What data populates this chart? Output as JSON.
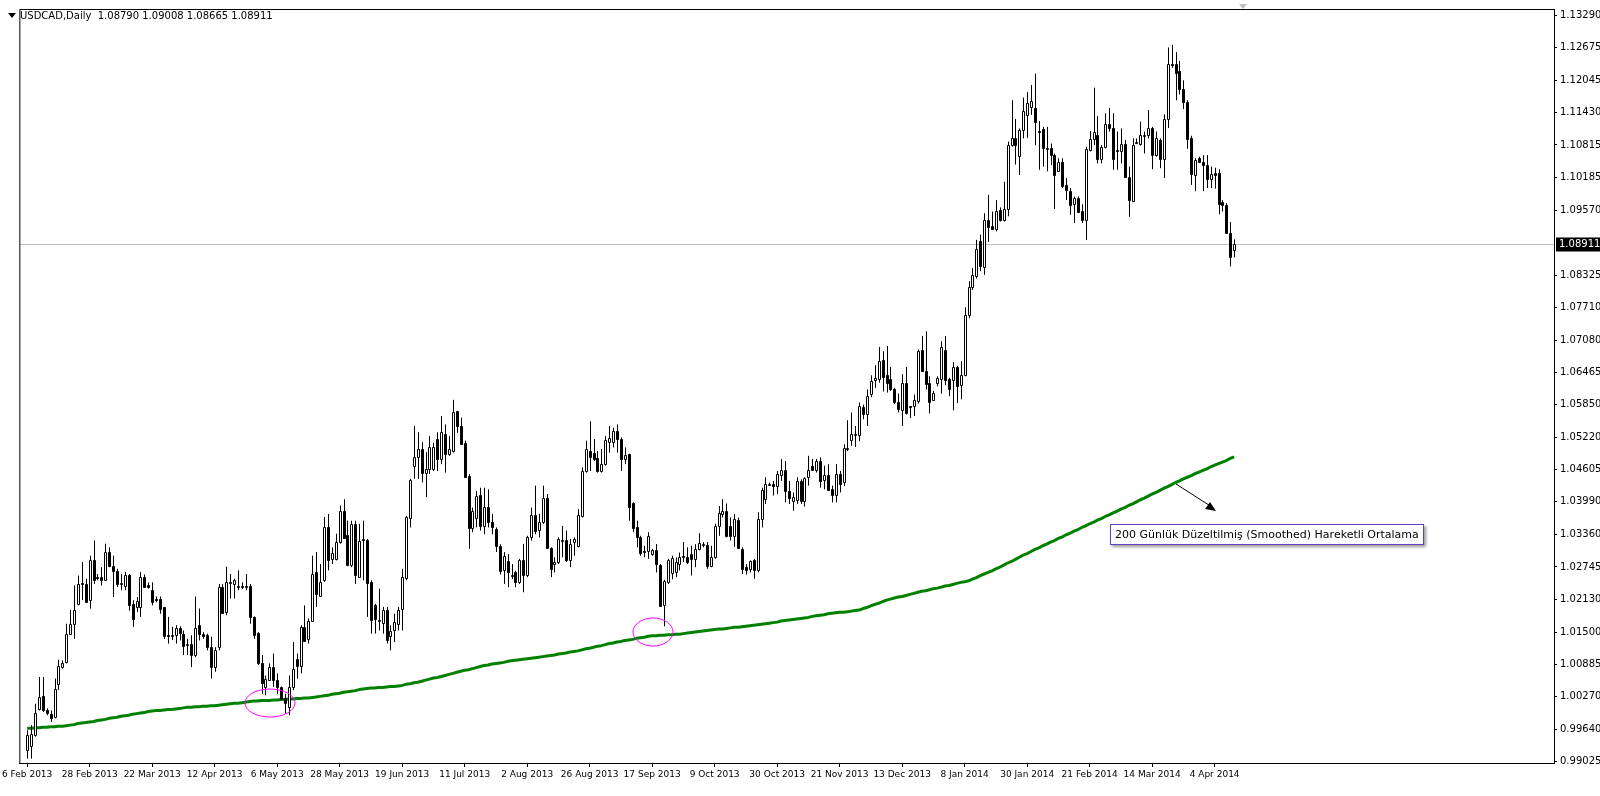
{
  "chart_data": {
    "type": "candlestick",
    "title": "USDCAD,Daily  1.08790 1.09008 1.08665 1.08911",
    "color": "#000000",
    "categories": [
      "6 Feb 2013",
      null,
      null,
      null,
      null,
      null,
      null,
      null,
      null,
      null,
      null,
      null,
      null,
      null,
      null,
      null,
      "28 Feb 2013",
      null,
      null,
      null,
      null,
      null,
      null,
      null,
      null,
      null,
      null,
      null,
      null,
      null,
      null,
      null,
      "22 Mar 2013",
      null,
      null,
      null,
      null,
      null,
      null,
      null,
      null,
      null,
      null,
      null,
      null,
      null,
      null,
      null,
      "12 Apr 2013",
      null,
      null,
      null,
      null,
      null,
      null,
      null,
      null,
      null,
      null,
      null,
      null,
      null,
      null,
      null,
      "6 May 2013",
      null,
      null,
      null,
      null,
      null,
      null,
      null,
      null,
      null,
      null,
      null,
      null,
      null,
      null,
      null,
      "28 May 2013",
      null,
      null,
      null,
      null,
      null,
      null,
      null,
      null,
      null,
      null,
      null,
      null,
      null,
      null,
      null,
      "19 Jun 2013",
      null,
      null,
      null,
      null,
      null,
      null,
      null,
      null,
      null,
      null,
      null,
      null,
      null,
      null,
      null,
      "11 Jul 2013",
      null,
      null,
      null,
      null,
      null,
      null,
      null,
      null,
      null,
      null,
      null,
      null,
      null,
      null,
      null,
      "2 Aug 2013",
      null,
      null,
      null,
      null,
      null,
      null,
      null,
      null,
      null,
      null,
      null,
      null,
      null,
      null,
      null,
      "26 Aug 2013",
      null,
      null,
      null,
      null,
      null,
      null,
      null,
      null,
      null,
      null,
      null,
      null,
      null,
      null,
      null,
      "17 Sep 2013",
      null,
      null,
      null,
      null,
      null,
      null,
      null,
      null,
      null,
      null,
      null,
      null,
      null,
      null,
      null,
      "9 Oct 2013",
      null,
      null,
      null,
      null,
      null,
      null,
      null,
      null,
      null,
      null,
      null,
      null,
      null,
      null,
      null,
      "30 Oct 2013",
      null,
      null,
      null,
      null,
      null,
      null,
      null,
      null,
      null,
      null,
      null,
      null,
      null,
      null,
      null,
      "21 Nov 2013",
      null,
      null,
      null,
      null,
      null,
      null,
      null,
      null,
      null,
      null,
      null,
      null,
      null,
      null,
      null,
      "13 Dec 2013",
      null,
      null,
      null,
      null,
      null,
      null,
      null,
      null,
      null,
      null,
      null,
      null,
      null,
      null,
      null,
      "8 Jan 2014",
      null,
      null,
      null,
      null,
      null,
      null,
      null,
      null,
      null,
      null,
      null,
      null,
      null,
      null,
      null,
      "30 Jan 2014",
      null,
      null,
      null,
      null,
      null,
      null,
      null,
      null,
      null,
      null,
      null,
      null,
      null,
      null,
      null,
      "21 Feb 2014",
      null,
      null,
      null,
      null,
      null,
      null,
      null,
      null,
      null,
      null,
      null,
      null,
      null,
      null,
      null,
      "14 Mar 2014",
      null,
      null,
      null,
      null,
      null,
      null,
      null,
      null,
      null,
      null,
      null,
      null,
      null,
      null,
      null,
      "4 Apr 2014",
      null,
      null,
      null,
      null,
      null
    ],
    "ohlc": [
      [
        0.9924,
        0.9962,
        0.9908,
        0.9953
      ],
      [
        0.9934,
        0.9972,
        0.9908,
        0.9956
      ],
      [
        0.9953,
        1.0013,
        0.995,
        0.9996
      ],
      [
        1.0004,
        1.0064,
        1.0,
        1.0026
      ],
      [
        1.0027,
        1.0064,
        0.9997,
        1.0
      ],
      [
        1.0,
        1.0004,
        0.9991,
        0.9994
      ],
      [
        0.9994,
        1.0,
        0.9978,
        0.9986
      ],
      [
        0.9988,
        1.0061,
        0.9985,
        1.0042
      ],
      [
        1.0051,
        1.0097,
        1.0039,
        1.0085
      ],
      [
        1.0083,
        1.0096,
        1.008,
        1.009
      ],
      [
        1.0093,
        1.0166,
        1.009,
        1.0147
      ],
      [
        1.0147,
        1.0192,
        1.0144,
        1.0166
      ],
      [
        1.0166,
        1.0239,
        1.0137,
        1.0192
      ],
      [
        1.0204,
        1.0258,
        1.0201,
        1.0242
      ],
      [
        1.0241,
        1.0284,
        1.0211,
        1.0243
      ],
      [
        1.0242,
        1.0252,
        1.0207,
        1.0207
      ],
      [
        1.0211,
        1.0296,
        1.0195,
        1.0288
      ],
      [
        1.0288,
        1.0325,
        1.0242,
        1.0249
      ],
      [
        1.0255,
        1.0261,
        1.0249,
        1.0254
      ],
      [
        1.0255,
        1.0274,
        1.0239,
        1.025
      ],
      [
        1.025,
        1.0319,
        1.0249,
        1.0303
      ],
      [
        1.0303,
        1.0312,
        1.0274,
        1.0277
      ],
      [
        1.0277,
        1.0296,
        1.0217,
        1.0268
      ],
      [
        1.0266,
        1.0271,
        1.0236,
        1.0242
      ],
      [
        1.0242,
        1.0261,
        1.023,
        1.0244
      ],
      [
        1.0239,
        1.0265,
        1.023,
        1.026
      ],
      [
        1.026,
        1.0261,
        1.0191,
        1.0203
      ],
      [
        1.0204,
        1.0211,
        1.016,
        1.0176
      ],
      [
        1.0197,
        1.0217,
        1.0188,
        1.0209
      ],
      [
        1.0198,
        1.0265,
        1.0179,
        1.0256
      ],
      [
        1.0256,
        1.026,
        1.0236,
        1.0237
      ],
      [
        1.024,
        1.0245,
        1.0233,
        1.0236
      ],
      [
        1.0231,
        1.0245,
        1.0201,
        1.0209
      ],
      [
        1.0214,
        1.0218,
        1.0207,
        1.0212
      ],
      [
        1.0214,
        1.0218,
        1.0185,
        1.0195
      ],
      [
        1.0197,
        1.0198,
        1.0137,
        1.0142
      ],
      [
        1.0145,
        1.0179,
        1.0128,
        1.0143
      ],
      [
        1.0144,
        1.016,
        1.0135,
        1.0145
      ],
      [
        1.0144,
        1.0163,
        1.0128,
        1.0157
      ],
      [
        1.0157,
        1.0161,
        1.0134,
        1.0147
      ],
      [
        1.0147,
        1.0153,
        1.0106,
        1.0125
      ],
      [
        1.0127,
        1.0137,
        1.0106,
        1.0128
      ],
      [
        1.0127,
        1.0144,
        1.0083,
        1.0106
      ],
      [
        1.0106,
        1.0218,
        1.0102,
        1.0157
      ],
      [
        1.0163,
        1.0195,
        1.0134,
        1.0146
      ],
      [
        1.0146,
        1.015,
        1.0137,
        1.0142
      ],
      [
        1.0144,
        1.0147,
        1.0115,
        1.0121
      ],
      [
        1.0121,
        1.0141,
        1.0061,
        1.0082
      ],
      [
        1.0083,
        1.0121,
        1.0074,
        1.0115
      ],
      [
        1.0123,
        1.0242,
        1.0115,
        1.0237
      ],
      [
        1.0237,
        1.0242,
        1.0185,
        1.0188
      ],
      [
        1.0188,
        1.0275,
        1.0182,
        1.0246
      ],
      [
        1.0245,
        1.0261,
        1.0214,
        1.0246
      ],
      [
        1.0242,
        1.0252,
        1.0214,
        1.0249
      ],
      [
        1.0238,
        1.0268,
        1.023,
        1.0239
      ],
      [
        1.0239,
        1.0245,
        1.0232,
        1.0238
      ],
      [
        1.0238,
        1.0261,
        1.023,
        1.0239
      ],
      [
        1.0238,
        1.0242,
        1.0166,
        1.0179
      ],
      [
        1.0179,
        1.018,
        1.0137,
        1.0144
      ],
      [
        1.0148,
        1.015,
        1.0087,
        1.0091
      ],
      [
        1.0091,
        1.0106,
        1.0032,
        1.0052
      ],
      [
        1.0045,
        1.0067,
        1.0029,
        1.0061
      ],
      [
        1.0059,
        1.009,
        1.0058,
        1.0083
      ],
      [
        1.0083,
        1.0109,
        1.0045,
        1.0058
      ],
      [
        1.0058,
        1.0071,
        1.0032,
        1.0045
      ],
      [
        1.0045,
        1.0046,
        1.002,
        1.0023
      ],
      [
        1.0023,
        1.0032,
        0.9994,
        1.0013
      ],
      [
        1.0007,
        1.0067,
        0.9991,
        1.0045
      ],
      [
        1.0045,
        1.0131,
        1.0039,
        1.008
      ],
      [
        1.0099,
        1.0109,
        1.0061,
        1.0085
      ],
      [
        1.0085,
        1.0163,
        1.0071,
        1.016
      ],
      [
        1.016,
        1.0201,
        1.0132,
        1.0134
      ],
      [
        1.0137,
        1.0176,
        1.0128,
        1.0172
      ],
      [
        1.0172,
        1.0296,
        1.017,
        1.0261
      ],
      [
        1.0265,
        1.0303,
        1.0198,
        1.0223
      ],
      [
        1.022,
        1.028,
        1.0217,
        1.0246
      ],
      [
        1.0249,
        1.037,
        1.0246,
        1.035
      ],
      [
        1.035,
        1.0376,
        1.0268,
        1.0287
      ],
      [
        1.029,
        1.0312,
        1.028,
        1.0301
      ],
      [
        1.029,
        1.0338,
        1.0287,
        1.0322
      ],
      [
        1.0322,
        1.0392,
        1.0319,
        1.0382
      ],
      [
        1.0382,
        1.0404,
        1.0328,
        1.0331
      ],
      [
        1.0335,
        1.0363,
        1.0276,
        1.0277
      ],
      [
        1.0277,
        1.0363,
        1.0274,
        1.0356
      ],
      [
        1.0356,
        1.0363,
        1.0242,
        1.0258
      ],
      [
        1.0256,
        1.0357,
        1.0255,
        1.0325
      ],
      [
        1.0326,
        1.0363,
        1.0249,
        1.0327
      ],
      [
        1.0326,
        1.0328,
        1.0179,
        1.0244
      ],
      [
        1.0246,
        1.0249,
        1.0147,
        1.0174
      ],
      [
        1.0201,
        1.0204,
        1.0147,
        1.0174
      ],
      [
        1.0172,
        1.0233,
        1.0153,
        1.0173
      ],
      [
        1.0169,
        1.0198,
        1.0147,
        1.0193
      ],
      [
        1.0193,
        1.0198,
        1.0128,
        1.0136
      ],
      [
        1.0142,
        1.0163,
        1.0115,
        1.0152
      ],
      [
        1.0153,
        1.0185,
        1.0131,
        1.0169
      ],
      [
        1.0166,
        1.0198,
        1.0153,
        1.0192
      ],
      [
        1.0193,
        1.0271,
        1.0153,
        1.0255
      ],
      [
        1.0254,
        1.0372,
        1.0249,
        1.037
      ],
      [
        1.0368,
        1.0443,
        1.035,
        1.0441
      ],
      [
        1.0468,
        1.0544,
        1.0443,
        1.0485
      ],
      [
        1.0485,
        1.0532,
        1.0443,
        1.05
      ],
      [
        1.05,
        1.0513,
        1.0436,
        1.0455
      ],
      [
        1.0455,
        1.0494,
        1.0408,
        1.0462
      ],
      [
        1.0462,
        1.0525,
        1.0452,
        1.0504
      ],
      [
        1.0462,
        1.0512,
        1.0458,
        1.0504
      ],
      [
        1.0519,
        1.0532,
        1.0458,
        1.0481
      ],
      [
        1.0481,
        1.0563,
        1.0471,
        1.0532
      ],
      [
        1.0528,
        1.0547,
        1.0455,
        1.049
      ],
      [
        1.049,
        1.0525,
        1.0487,
        1.05
      ],
      [
        1.0496,
        1.0594,
        1.0493,
        1.057
      ],
      [
        1.0572,
        1.0573,
        1.0531,
        1.0544
      ],
      [
        1.0544,
        1.056,
        1.0509,
        1.051
      ],
      [
        1.0512,
        1.0516,
        1.0446,
        1.0447
      ],
      [
        1.0449,
        1.0452,
        1.0309,
        1.0349
      ],
      [
        1.0349,
        1.0388,
        1.0341,
        1.0381
      ],
      [
        1.0368,
        1.042,
        1.035,
        1.041
      ],
      [
        1.0412,
        1.0426,
        1.0344,
        1.0353
      ],
      [
        1.0353,
        1.0426,
        1.0337,
        1.0389
      ],
      [
        1.0389,
        1.0423,
        1.035,
        1.036
      ],
      [
        1.036,
        1.0376,
        1.0337,
        1.035
      ],
      [
        1.0348,
        1.035,
        1.0303,
        1.0315
      ],
      [
        1.0315,
        1.0318,
        1.026,
        1.0268
      ],
      [
        1.0269,
        1.0303,
        1.0242,
        1.0296
      ],
      [
        1.0285,
        1.0299,
        1.0236,
        1.0264
      ],
      [
        1.0259,
        1.028,
        1.0251,
        1.026
      ],
      [
        1.0264,
        1.0267,
        1.0236,
        1.0245
      ],
      [
        1.0245,
        1.029,
        1.0242,
        1.0287
      ],
      [
        1.0287,
        1.0318,
        1.0226,
        1.0258
      ],
      [
        1.0258,
        1.0334,
        1.0255,
        1.0331
      ],
      [
        1.0331,
        1.0388,
        1.0325,
        1.0374
      ],
      [
        1.0374,
        1.043,
        1.0337,
        1.0344
      ],
      [
        1.0344,
        1.0376,
        1.0331,
        1.036
      ],
      [
        1.036,
        1.043,
        1.0357,
        1.0406
      ],
      [
        1.0407,
        1.0414,
        1.0309,
        1.0311
      ],
      [
        1.0311,
        1.0312,
        1.0255,
        1.0271
      ],
      [
        1.028,
        1.0293,
        1.0264,
        1.0284
      ],
      [
        1.0284,
        1.0331,
        1.028,
        1.0328
      ],
      [
        1.0325,
        1.0353,
        1.0293,
        1.0326
      ],
      [
        1.0326,
        1.0344,
        1.0284,
        1.0287
      ],
      [
        1.0287,
        1.0328,
        1.0274,
        1.0318
      ],
      [
        1.0323,
        1.0331,
        1.0296,
        1.0328
      ],
      [
        1.0315,
        1.0385,
        1.0312,
        1.0374
      ],
      [
        1.0372,
        1.0465,
        1.0369,
        1.0458
      ],
      [
        1.0458,
        1.0516,
        1.0455,
        1.05
      ],
      [
        1.0496,
        1.0553,
        1.0458,
        1.0485
      ],
      [
        1.0493,
        1.0519,
        1.0477,
        1.0482
      ],
      [
        1.0482,
        1.0496,
        1.0455,
        1.0458
      ],
      [
        1.0458,
        1.05,
        1.0455,
        1.0471
      ],
      [
        1.0471,
        1.0525,
        1.0468,
        1.0517
      ],
      [
        1.0515,
        1.0544,
        1.0493,
        1.0522
      ],
      [
        1.0514,
        1.0541,
        1.0503,
        1.0535
      ],
      [
        1.0535,
        1.0547,
        1.0493,
        1.0519
      ],
      [
        1.0519,
        1.0522,
        1.0458,
        1.0481
      ],
      [
        1.0481,
        1.0503,
        1.0471,
        1.0489
      ],
      [
        1.049,
        1.0491,
        1.0363,
        1.0388
      ],
      [
        1.0397,
        1.0398,
        1.0341,
        1.035
      ],
      [
        1.0351,
        1.0363,
        1.0312,
        1.0331
      ],
      [
        1.0331,
        1.0334,
        1.0296,
        1.03
      ],
      [
        1.0305,
        1.0315,
        1.0293,
        1.0303
      ],
      [
        1.0306,
        1.0341,
        1.029,
        1.0334
      ],
      [
        1.0299,
        1.0309,
        1.0296,
        1.0306
      ],
      [
        1.0306,
        1.0318,
        1.0264,
        1.0279
      ],
      [
        1.0279,
        1.028,
        1.0199,
        1.0201
      ],
      [
        1.0201,
        1.025,
        1.0161,
        1.0247
      ],
      [
        1.0245,
        1.029,
        1.0242,
        1.0287
      ],
      [
        1.0264,
        1.0296,
        1.0251,
        1.0292
      ],
      [
        1.0264,
        1.0293,
        1.0255,
        1.0284
      ],
      [
        1.0281,
        1.0302,
        1.0268,
        1.0294
      ],
      [
        1.0294,
        1.0322,
        1.0284,
        1.0295
      ],
      [
        1.0293,
        1.0312,
        1.028,
        1.0284
      ],
      [
        1.03,
        1.0315,
        1.0258,
        1.029
      ],
      [
        1.029,
        1.0318,
        1.0274,
        1.0309
      ],
      [
        1.0309,
        1.0339,
        1.0306,
        1.032
      ],
      [
        1.0318,
        1.0322,
        1.0312,
        1.0319
      ],
      [
        1.0317,
        1.0322,
        1.0271,
        1.0277
      ],
      [
        1.0277,
        1.0315,
        1.0274,
        1.0294
      ],
      [
        1.0293,
        1.0357,
        1.029,
        1.0353
      ],
      [
        1.0353,
        1.0391,
        1.0334,
        1.0377
      ],
      [
        1.0377,
        1.0404,
        1.0369,
        1.0382
      ],
      [
        1.0382,
        1.0396,
        1.0331,
        1.0334
      ],
      [
        1.0353,
        1.0369,
        1.0325,
        1.0334
      ],
      [
        1.0334,
        1.0376,
        1.0313,
        1.0366
      ],
      [
        1.0364,
        1.0369,
        1.0309,
        1.0311
      ],
      [
        1.0309,
        1.0312,
        1.0261,
        1.0271
      ],
      [
        1.0275,
        1.028,
        1.026,
        1.0269
      ],
      [
        1.0269,
        1.0287,
        1.0264,
        1.0285
      ],
      [
        1.0287,
        1.029,
        1.0252,
        1.0268
      ],
      [
        1.0268,
        1.0379,
        1.0264,
        1.0366
      ],
      [
        1.0366,
        1.0426,
        1.035,
        1.0422
      ],
      [
        1.0406,
        1.0446,
        1.0395,
        1.0434
      ],
      [
        1.0433,
        1.0436,
        1.043,
        1.0434
      ],
      [
        1.0433,
        1.0439,
        1.0411,
        1.043
      ],
      [
        1.043,
        1.0458,
        1.0414,
        1.0452
      ],
      [
        1.0451,
        1.0481,
        1.0439,
        1.046
      ],
      [
        1.046,
        1.0477,
        1.0398,
        1.0419
      ],
      [
        1.042,
        1.0439,
        1.0395,
        1.0406
      ],
      [
        1.0402,
        1.0417,
        1.0382,
        1.0409
      ],
      [
        1.0401,
        1.0446,
        1.0395,
        1.0438
      ],
      [
        1.0439,
        1.0442,
        1.0395,
        1.0401
      ],
      [
        1.04,
        1.0446,
        1.039,
        1.0444
      ],
      [
        1.0447,
        1.0487,
        1.043,
        1.046
      ],
      [
        1.0468,
        1.0481,
        1.0458,
        1.046
      ],
      [
        1.046,
        1.0481,
        1.0455,
        1.0477
      ],
      [
        1.0478,
        1.0484,
        1.0426,
        1.044
      ],
      [
        1.044,
        1.0468,
        1.0423,
        1.045
      ],
      [
        1.045,
        1.0471,
        1.042,
        1.0421
      ],
      [
        1.0423,
        1.043,
        1.0398,
        1.0412
      ],
      [
        1.0412,
        1.0471,
        1.0398,
        1.0453
      ],
      [
        1.0453,
        1.0458,
        1.0417,
        1.0434
      ],
      [
        1.0436,
        1.0509,
        1.0429,
        1.0501
      ],
      [
        1.0499,
        1.0555,
        1.0496,
        1.0501
      ],
      [
        1.0517,
        1.057,
        1.0506,
        1.0528
      ],
      [
        1.0527,
        1.0544,
        1.0504,
        1.0528
      ],
      [
        1.0527,
        1.0589,
        1.0515,
        1.0582
      ],
      [
        1.058,
        1.0585,
        1.0557,
        1.0566
      ],
      [
        1.0566,
        1.0614,
        1.0544,
        1.0601
      ],
      [
        1.0606,
        1.0641,
        1.0599,
        1.063
      ],
      [
        1.0631,
        1.066,
        1.0617,
        1.0635
      ],
      [
        1.0635,
        1.0695,
        1.0627,
        1.0669
      ],
      [
        1.0671,
        1.0687,
        1.061,
        1.0638
      ],
      [
        1.0641,
        1.0697,
        1.0608,
        1.0625
      ],
      [
        1.0633,
        1.0657,
        1.0611,
        1.0614
      ],
      [
        1.0614,
        1.0617,
        1.0586,
        1.0589
      ],
      [
        1.0589,
        1.0606,
        1.057,
        1.0576
      ],
      [
        1.0576,
        1.0643,
        1.0544,
        1.0627
      ],
      [
        1.0627,
        1.0657,
        1.0566,
        1.057
      ],
      [
        1.0582,
        1.0582,
        1.0559,
        1.0581
      ],
      [
        1.0582,
        1.0604,
        1.0563,
        1.0593
      ],
      [
        1.0591,
        1.069,
        1.0587,
        1.0687
      ],
      [
        1.069,
        1.0716,
        1.0648,
        1.0649
      ],
      [
        1.065,
        1.0725,
        1.0614,
        1.0625
      ],
      [
        1.0627,
        1.0639,
        1.0568,
        1.0591
      ],
      [
        1.0595,
        1.0611,
        1.0593,
        1.0608
      ],
      [
        1.0627,
        1.0639,
        1.062,
        1.0636
      ],
      [
        1.0633,
        1.0706,
        1.0606,
        1.0695
      ],
      [
        1.069,
        1.0716,
        1.0622,
        1.0633
      ],
      [
        1.0633,
        1.0636,
        1.0601,
        1.0614
      ],
      [
        1.0633,
        1.0666,
        1.0574,
        1.0657
      ],
      [
        1.0657,
        1.0659,
        1.0588,
        1.062
      ],
      [
        1.0622,
        1.0668,
        1.0595,
        1.0642
      ],
      [
        1.0642,
        1.0771,
        1.0639,
        1.0756
      ],
      [
        1.0756,
        1.0821,
        1.075,
        1.0809
      ],
      [
        1.0809,
        1.0846,
        1.0804,
        1.0832
      ],
      [
        1.0832,
        1.09,
        1.0826,
        1.0883
      ],
      [
        1.0898,
        1.091,
        1.084,
        1.0851
      ],
      [
        1.0849,
        1.0951,
        1.0833,
        1.0938
      ],
      [
        1.0938,
        1.0986,
        1.0896,
        1.0925
      ],
      [
        1.0927,
        1.0954,
        1.0919,
        1.0921
      ],
      [
        1.0921,
        1.0976,
        1.0916,
        1.0955
      ],
      [
        1.0957,
        1.0962,
        1.0935,
        1.0938
      ],
      [
        1.0938,
        1.1011,
        1.0935,
        1.0959
      ],
      [
        1.0959,
        1.1088,
        1.0945,
        1.1081
      ],
      [
        1.108,
        1.1167,
        1.1078,
        1.1094
      ],
      [
        1.1094,
        1.1131,
        1.1044,
        1.1081
      ],
      [
        1.1061,
        1.1113,
        1.1024,
        1.111
      ],
      [
        1.111,
        1.1172,
        1.1094,
        1.1146
      ],
      [
        1.1139,
        1.1183,
        1.1095,
        1.1161
      ],
      [
        1.1153,
        1.1196,
        1.1139,
        1.1165
      ],
      [
        1.1153,
        1.1218,
        1.1081,
        1.1126
      ],
      [
        1.1109,
        1.1127,
        1.1034,
        1.1108
      ],
      [
        1.1112,
        1.1116,
        1.104,
        1.1075
      ],
      [
        1.1075,
        1.1116,
        1.1031,
        1.1076
      ],
      [
        1.1075,
        1.1084,
        1.1043,
        1.1062
      ],
      [
        1.1063,
        1.1065,
        1.0959,
        1.1024
      ],
      [
        1.1032,
        1.1056,
        1.103,
        1.1049
      ],
      [
        1.1049,
        1.1056,
        1.0999,
        1.1004
      ],
      [
        1.1004,
        1.1018,
        1.0976,
        1.0994
      ],
      [
        1.0994,
        1.0999,
        1.0948,
        1.0968
      ],
      [
        1.0968,
        1.0983,
        1.0932,
        1.098
      ],
      [
        1.098,
        1.0983,
        1.0951,
        1.0954
      ],
      [
        1.0955,
        1.0968,
        1.0932,
        1.0938
      ],
      [
        1.0938,
        1.1078,
        1.09,
        1.1074
      ],
      [
        1.1072,
        1.1108,
        1.1069,
        1.1093
      ],
      [
        1.1093,
        1.1191,
        1.1081,
        1.1106
      ],
      [
        1.11,
        1.1137,
        1.1046,
        1.1054
      ],
      [
        1.1054,
        1.1081,
        1.1046,
        1.1077
      ],
      [
        1.1077,
        1.1142,
        1.1075,
        1.1121
      ],
      [
        1.1121,
        1.1152,
        1.1107,
        1.1113
      ],
      [
        1.1113,
        1.1142,
        1.1034,
        1.1054
      ],
      [
        1.1072,
        1.1107,
        1.1034,
        1.1071
      ],
      [
        1.107,
        1.1113,
        1.1046,
        1.1084
      ],
      [
        1.1084,
        1.1091,
        1.1018,
        1.102
      ],
      [
        1.102,
        1.104,
        1.0944,
        1.0976
      ],
      [
        1.0974,
        1.1094,
        1.0972,
        1.1081
      ],
      [
        1.1086,
        1.1094,
        1.1083,
        1.1087
      ],
      [
        1.1083,
        1.1126,
        1.108,
        1.11
      ],
      [
        1.11,
        1.1107,
        1.1065,
        1.1101
      ],
      [
        1.1099,
        1.1148,
        1.1094,
        1.1113
      ],
      [
        1.1113,
        1.1116,
        1.1035,
        1.1062
      ],
      [
        1.1063,
        1.1107,
        1.1059,
        1.1095
      ],
      [
        1.1091,
        1.1094,
        1.1037,
        1.1054
      ],
      [
        1.1054,
        1.114,
        1.1018,
        1.1131
      ],
      [
        1.1131,
        1.1268,
        1.1114,
        1.1236
      ],
      [
        1.1236,
        1.1273,
        1.1229,
        1.1235
      ],
      [
        1.1236,
        1.1259,
        1.1167,
        1.1218
      ],
      [
        1.1223,
        1.1242,
        1.1178,
        1.1188
      ],
      [
        1.1188,
        1.1205,
        1.115,
        1.1164
      ],
      [
        1.1164,
        1.1167,
        1.1074,
        1.1094
      ],
      [
        1.1094,
        1.1099,
        1.1005,
        1.1025
      ],
      [
        1.1025,
        1.1056,
        1.0993,
        1.1053
      ],
      [
        1.1057,
        1.1059,
        1.1048,
        1.1049
      ],
      [
        1.1049,
        1.1062,
        1.0993,
        1.1043
      ],
      [
        1.1043,
        1.1062,
        1.0999,
        1.1016
      ],
      [
        1.1016,
        1.104,
        1.0999,
        1.1025
      ],
      [
        1.1027,
        1.1038,
        1.0998,
        1.1023
      ],
      [
        1.1027,
        1.1035,
        1.0949,
        1.0968
      ],
      [
        1.0972,
        1.0976,
        1.0954,
        1.0967
      ],
      [
        1.0967,
        1.097,
        1.0912,
        1.0913
      ],
      [
        1.0913,
        1.0934,
        1.0849,
        1.0867
      ],
      [
        1.0879,
        1.09008,
        1.08665,
        1.08911
      ]
    ],
    "series": [
      {
        "type": "line",
        "color": "#008000",
        "values": [
          0.9966,
          0.9966,
          0.9967,
          0.9967,
          0.9968,
          0.9968,
          0.9969,
          0.9969,
          0.997,
          0.997,
          0.9971,
          0.9972,
          0.9973,
          0.9975,
          0.9976,
          0.9977,
          0.9978,
          0.9979,
          0.9981,
          0.9982,
          0.9983,
          0.9985,
          0.9986,
          0.9987,
          0.9989,
          0.999,
          0.9991,
          0.9993,
          0.9994,
          0.9995,
          0.9996,
          0.9998,
          0.9999,
          1.0,
          1.0,
          1.0001,
          1.0002,
          1.0002,
          1.0003,
          1.0004,
          1.0005,
          1.0006,
          1.0006,
          1.0007,
          1.0007,
          1.0008,
          1.0008,
          1.0009,
          1.0009,
          1.001,
          1.0011,
          1.0012,
          1.0013,
          1.0014,
          1.0014,
          1.0015,
          1.0016,
          1.0017,
          1.0018,
          1.0018,
          1.0019,
          1.0019,
          1.0019,
          1.002,
          1.002,
          1.0021,
          1.0021,
          1.0022,
          1.0022,
          1.0023,
          1.0023,
          1.0024,
          1.0024,
          1.0025,
          1.0026,
          1.0027,
          1.0028,
          1.0029,
          1.0031,
          1.0032,
          1.0033,
          1.0035,
          1.0036,
          1.0037,
          1.0038,
          1.004,
          1.0041,
          1.0042,
          1.0043,
          1.0043,
          1.0044,
          1.0044,
          1.0045,
          1.0046,
          1.0046,
          1.0047,
          1.0048,
          1.005,
          1.0051,
          1.0053,
          1.0054,
          1.0056,
          1.0058,
          1.006,
          1.0062,
          1.0063,
          1.0065,
          1.0067,
          1.0069,
          1.0071,
          1.0073,
          1.0075,
          1.0077,
          1.0078,
          1.008,
          1.0082,
          1.0084,
          1.0086,
          1.0087,
          1.0089,
          1.009,
          1.0091,
          1.0092,
          1.0094,
          1.0095,
          1.0096,
          1.0097,
          1.0098,
          1.0099,
          1.01,
          1.0101,
          1.0102,
          1.0103,
          1.0104,
          1.0105,
          1.0106,
          1.0108,
          1.0109,
          1.011,
          1.0112,
          1.0113,
          1.0114,
          1.0116,
          1.0118,
          1.0119,
          1.0121,
          1.0123,
          1.0124,
          1.0126,
          1.0128,
          1.0129,
          1.0131,
          1.0132,
          1.0134,
          1.0135,
          1.0136,
          1.0138,
          1.0139,
          1.014,
          1.0142,
          1.0143,
          1.0143,
          1.0144,
          1.0144,
          1.0145,
          1.0145,
          1.0146,
          1.0146,
          1.0147,
          1.0148,
          1.0149,
          1.015,
          1.0151,
          1.0152,
          1.0153,
          1.0154,
          1.0155,
          1.0156,
          1.0156,
          1.0157,
          1.0158,
          1.0159,
          1.0159,
          1.016,
          1.0161,
          1.0162,
          1.0163,
          1.0164,
          1.0165,
          1.0166,
          1.0167,
          1.0168,
          1.0169,
          1.0171,
          1.0172,
          1.0173,
          1.0174,
          1.0175,
          1.0176,
          1.0177,
          1.0178,
          1.018,
          1.0181,
          1.0182,
          1.0183,
          1.0185,
          1.0186,
          1.0187,
          1.0188,
          1.0188,
          1.0189,
          1.019,
          1.0191,
          1.0192,
          1.0195,
          1.0197,
          1.02,
          1.0203,
          1.0205,
          1.0208,
          1.0211,
          1.0213,
          1.0215,
          1.0217,
          1.0218,
          1.022,
          1.0222,
          1.0224,
          1.0226,
          1.0228,
          1.0229,
          1.0231,
          1.0233,
          1.0234,
          1.0236,
          1.0238,
          1.0239,
          1.0241,
          1.0243,
          1.0245,
          1.0246,
          1.0248,
          1.0251,
          1.0254,
          1.0258,
          1.0261,
          1.0264,
          1.0267,
          1.0271,
          1.0274,
          1.0278,
          1.0282,
          1.0285,
          1.0289,
          1.0293,
          1.0297,
          1.03,
          1.0304,
          1.0308,
          1.0311,
          1.0315,
          1.0318,
          1.0322,
          1.0325,
          1.0329,
          1.0332,
          1.0336,
          1.0339,
          1.0343,
          1.0346,
          1.035,
          1.0353,
          1.0357,
          1.036,
          1.0364,
          1.0367,
          1.0371,
          1.0374,
          1.0378,
          1.0381,
          1.0385,
          1.0388,
          1.0392,
          1.0395,
          1.0399,
          1.0403,
          1.0406,
          1.041,
          1.0414,
          1.0417,
          1.0421,
          1.0425,
          1.0428,
          1.0432,
          1.0436,
          1.0439,
          1.0443,
          1.0446,
          1.0449,
          1.0453,
          1.0456,
          1.0459,
          1.0462,
          1.0466,
          1.0469,
          1.0472,
          1.0475,
          1.0478,
          1.0482,
          1.0485
        ]
      }
    ],
    "ylim": [
      0.98996,
      1.13414
    ],
    "yticks": [
      {
        "value": 1.1329,
        "label": "1.13290"
      },
      1.12675,
      1.12045,
      {
        "value": 1.1143,
        "label": "1.11430"
      },
      1.10815,
      1.10185,
      {
        "value": 1.0957,
        "label": "1.09570"
      },
      1.08325,
      {
        "value": 1.0771,
        "label": "1.07710"
      },
      {
        "value": 1.0708,
        "label": "1.07080"
      },
      1.06465,
      {
        "value": 1.0585,
        "label": "1.05850"
      },
      {
        "value": 1.0522,
        "label": "1.05220"
      },
      1.04605,
      {
        "value": 1.0399,
        "label": "1.03990"
      },
      {
        "value": 1.0336,
        "label": "1.03360"
      },
      1.02745,
      {
        "value": 1.0213,
        "label": "1.02130"
      },
      {
        "value": 1.015,
        "label": "1.01500"
      },
      1.00885,
      {
        "value": 1.0027,
        "label": "1.00270"
      },
      {
        "value": 0.9964,
        "label": "0.99640"
      },
      0.99025
    ],
    "ref_lines": [
      {
        "axis": "y",
        "value": 1.08911,
        "label": "1.08911",
        "color": "#c0c0c0"
      }
    ],
    "annotations": [
      "200 Günlük Düzeltilmiş (Smoothed) Hareketli Ortalama"
    ]
  }
}
